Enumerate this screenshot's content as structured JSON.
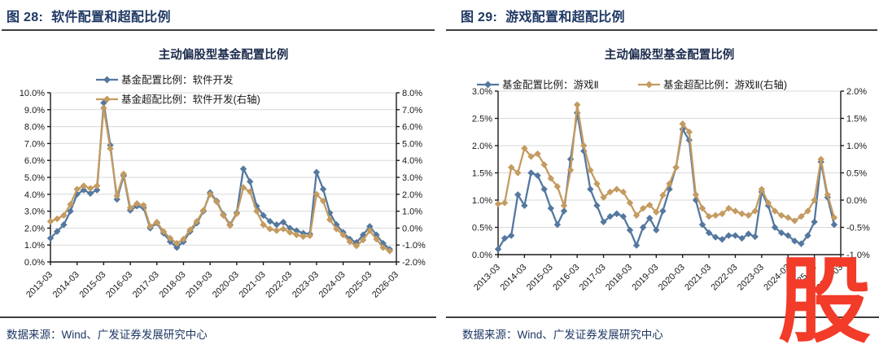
{
  "watermark_glyph": "股",
  "colors": {
    "allocation_blue": "#54789F",
    "overweight_orange": "#C49B60",
    "heading_navy": "#1F3864",
    "grid_gray": "#D9D9D9",
    "axis_black": "#1A1A1A",
    "watermark_red": "#F23B28"
  },
  "chart_data": [
    {
      "type": "line",
      "figure_label": "图 28:",
      "figure_title": "软件配置和超配比例",
      "chart_title": "主动偏股型基金配置比例",
      "source": "数据来源：Wind、广发证券发展研究中心",
      "points_per_tick": 4,
      "x_tick_labels": [
        "2013-03",
        "2014-03",
        "2015-03",
        "2016-03",
        "2017-03",
        "2018-03",
        "2019-03",
        "2020-03",
        "2021-03",
        "2022-03",
        "2023-03",
        "2024-03",
        "2025-03",
        "2026-03"
      ],
      "left_axis": {
        "min": 0,
        "max": 10,
        "step": 1
      },
      "right_axis": {
        "min": -2,
        "max": 8,
        "step": 1
      },
      "series": [
        {
          "name": "基金配置比例：软件开发",
          "axis": "left",
          "color": "#54789F",
          "values": [
            1.4,
            1.8,
            2.2,
            3.0,
            4.0,
            4.25,
            4.05,
            4.25,
            9.4,
            6.9,
            3.7,
            5.1,
            3.05,
            3.3,
            3.2,
            2.0,
            2.3,
            1.7,
            1.2,
            0.85,
            1.2,
            1.8,
            2.3,
            3.0,
            4.1,
            3.6,
            2.8,
            2.2,
            2.9,
            5.5,
            4.75,
            3.3,
            2.75,
            2.4,
            2.2,
            2.35,
            2.0,
            1.85,
            1.7,
            1.65,
            5.3,
            4.3,
            2.9,
            2.2,
            1.75,
            1.35,
            1.15,
            1.6,
            2.1,
            1.6,
            1.1,
            0.75
          ]
        },
        {
          "name": "基金超配比例：软件开发(右轴)",
          "axis": "right",
          "color": "#C49B60",
          "values": [
            0.4,
            0.55,
            0.75,
            1.4,
            2.3,
            2.5,
            2.35,
            2.5,
            7.1,
            4.7,
            1.9,
            3.2,
            1.2,
            1.45,
            1.35,
            0.1,
            0.35,
            -0.2,
            -0.6,
            -0.9,
            -0.65,
            -0.1,
            0.4,
            1.05,
            2.0,
            1.55,
            0.75,
            0.15,
            0.85,
            2.4,
            2.15,
            1.0,
            0.2,
            -0.05,
            -0.15,
            -0.05,
            -0.25,
            -0.4,
            -0.5,
            -0.45,
            2.0,
            1.6,
            0.5,
            -0.05,
            -0.4,
            -0.8,
            -1.05,
            -0.7,
            -0.15,
            -0.65,
            -1.15,
            -1.35
          ]
        }
      ]
    },
    {
      "type": "line",
      "figure_label": "图 29:",
      "figure_title": "游戏配置和超配比例",
      "chart_title": "主动偏股型基金配置比例",
      "source": "数据来源：Wind、广发证券发展研究中心",
      "points_per_tick": 4,
      "x_tick_labels": [
        "2013-03",
        "2014-03",
        "2015-03",
        "2016-03",
        "2017-03",
        "2018-03",
        "2019-03",
        "2020-03",
        "2021-03",
        "2022-03",
        "2023-03",
        "2024-03",
        "2025-03",
        "2026-03"
      ],
      "left_axis": {
        "min": 0,
        "max": 3,
        "step": 0.5
      },
      "right_axis": {
        "min": -1,
        "max": 2,
        "step": 0.5
      },
      "series": [
        {
          "name": "基金配置比例：游戏Ⅱ",
          "axis": "left",
          "color": "#54789F",
          "values": [
            0.1,
            0.3,
            0.35,
            1.1,
            0.9,
            1.5,
            1.45,
            1.2,
            0.85,
            0.55,
            0.8,
            1.75,
            2.6,
            1.9,
            1.2,
            0.9,
            0.6,
            0.7,
            0.75,
            0.7,
            0.45,
            0.17,
            0.5,
            0.67,
            0.45,
            0.8,
            1.2,
            1.6,
            2.3,
            2.1,
            1.0,
            0.55,
            0.4,
            0.32,
            0.28,
            0.35,
            0.35,
            0.3,
            0.38,
            0.33,
            1.15,
            0.9,
            0.5,
            0.4,
            0.35,
            0.25,
            0.2,
            0.35,
            0.6,
            1.7,
            1.05,
            0.55
          ]
        },
        {
          "name": "基金超配比例：游戏Ⅱ(右轴)",
          "axis": "right",
          "color": "#C49B60",
          "values": [
            -0.07,
            -0.05,
            0.6,
            0.5,
            0.95,
            0.8,
            0.85,
            0.65,
            0.4,
            0.25,
            -0.1,
            0.55,
            1.75,
            1.0,
            0.55,
            0.3,
            0.05,
            0.15,
            0.2,
            0.15,
            -0.05,
            -0.28,
            -0.15,
            -0.09,
            -0.22,
            0.09,
            0.3,
            0.6,
            1.4,
            1.25,
            0.1,
            -0.15,
            -0.3,
            -0.28,
            -0.25,
            -0.15,
            -0.2,
            -0.25,
            -0.28,
            -0.2,
            0.2,
            -0.05,
            -0.2,
            -0.28,
            -0.32,
            -0.38,
            -0.3,
            -0.2,
            0.0,
            0.75,
            0.1,
            -0.32
          ]
        }
      ]
    }
  ]
}
